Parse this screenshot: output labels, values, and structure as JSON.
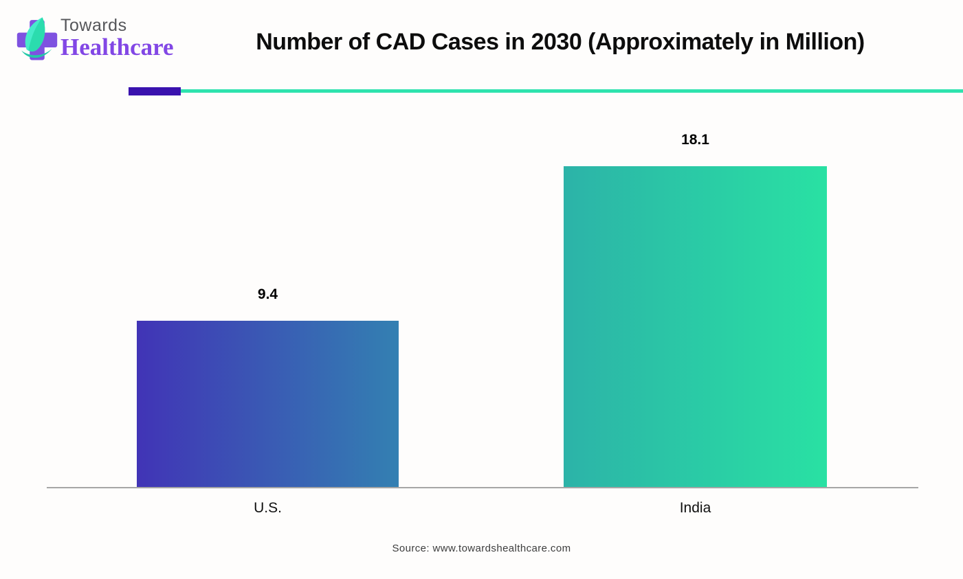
{
  "logo": {
    "towards": "Towards",
    "healthcare": "Healthcare",
    "towards_color": "#55565a",
    "healthcare_color": "#8247e5",
    "icon_cross_color": "#7e52e0",
    "icon_leaf_colors": [
      "#46ecca",
      "#25d2a0"
    ]
  },
  "header": {
    "title": "Number of CAD Cases in 2030 (Approximately in Million)"
  },
  "divider": {
    "accent_color": "#3a12ae",
    "line_color": "#2fe3ae"
  },
  "chart_data": {
    "type": "bar",
    "title": "Number of CAD Cases in 2030 (Approximately in Million)",
    "categories": [
      "U.S.",
      "India"
    ],
    "values": [
      9.4,
      18.1
    ],
    "bars": [
      {
        "category": "U.S.",
        "value": 9.4,
        "value_label": "9.4",
        "gradient": [
          "#4134b6",
          "#3380b2"
        ]
      },
      {
        "category": "India",
        "value": 18.1,
        "value_label": "18.1",
        "gradient": [
          "#2cb3a8",
          "#29e1a3"
        ]
      }
    ],
    "xlabel": "",
    "ylabel": "",
    "ylim": [
      0,
      18.1
    ],
    "grid": false,
    "legend": false,
    "axis_color": "#a6a6a6",
    "value_label_color": "#000000"
  },
  "footer": {
    "source": "Source: www.towardshealthcare.com"
  }
}
